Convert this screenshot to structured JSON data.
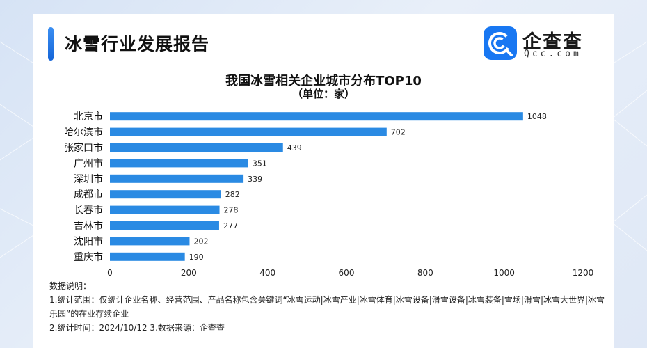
{
  "header": {
    "report_title": "冰雪行业发展报告",
    "logo_name": "企查查",
    "logo_domain": "Qcc.com"
  },
  "colors": {
    "bar": "#2a8ae3",
    "accent": "#1877f2"
  },
  "chart_data": {
    "type": "bar",
    "orientation": "horizontal",
    "title": "我国冰雪相关企业城市分布TOP10",
    "subtitle": "（单位：家）",
    "categories": [
      "北京市",
      "哈尔滨市",
      "张家口市",
      "广州市",
      "深圳市",
      "成都市",
      "长春市",
      "吉林市",
      "沈阳市",
      "重庆市"
    ],
    "values": [
      1048,
      702,
      439,
      351,
      339,
      282,
      278,
      277,
      202,
      190
    ],
    "xlim": [
      0,
      1200
    ],
    "xticks": [
      0,
      200,
      400,
      600,
      800,
      1000,
      1200
    ],
    "grid": false,
    "legend": "none"
  },
  "notes": {
    "heading": "数据说明：",
    "line1": "1.统计范围：仅统计企业名称、经营范围、产品名称包含关键词“冰雪运动|冰雪产业|冰雪体育|冰雪设备|滑雪设备|冰雪装备|雪场|滑雪|冰雪大世界|冰雪乐园”的在业存续企业",
    "line2": "2.统计时间：2024/10/12    3.数据来源：企查查"
  }
}
